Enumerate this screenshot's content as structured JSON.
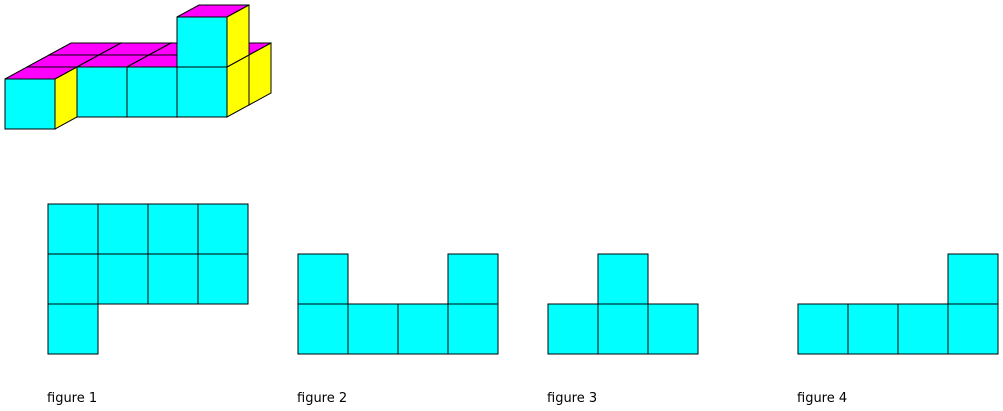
{
  "figures": [
    {
      "label": "figure 1"
    },
    {
      "label": "figure 2"
    },
    {
      "label": "figure 3"
    },
    {
      "label": "figure 4"
    }
  ]
}
